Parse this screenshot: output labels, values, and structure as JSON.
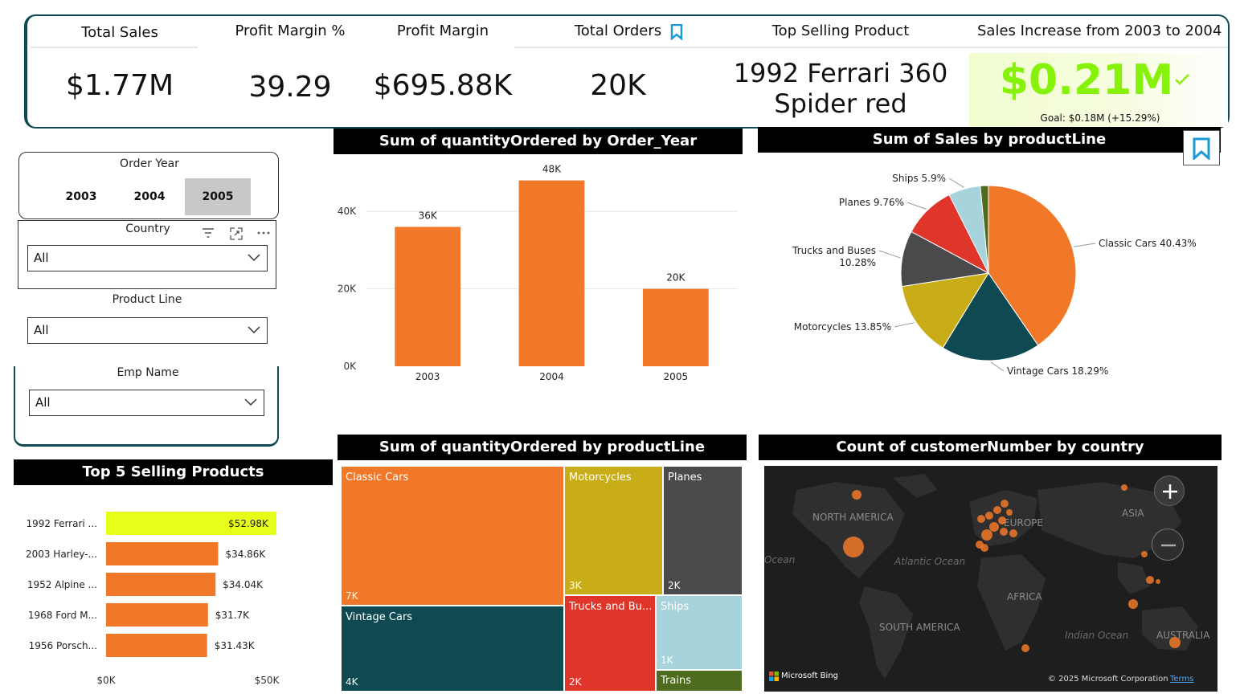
{
  "kpis": {
    "total_sales": {
      "title": "Total Sales",
      "value": "$1.77M"
    },
    "profit_margin_pct": {
      "title": "Profit Margin %",
      "value": "39.29"
    },
    "profit_margin": {
      "title": "Profit Margin",
      "value": "$695.88K"
    },
    "total_orders": {
      "title": "Total Orders",
      "value": "20K"
    },
    "top_product": {
      "title": "Top Selling Product",
      "value_line1": "1992 Ferrari 360",
      "value_line2": "Spider red"
    },
    "sales_increase": {
      "title": "Sales Increase from 2003 to 2004",
      "value": "$0.21M",
      "goal": "Goal: $0.18M (+15.29%)"
    }
  },
  "slicers": {
    "order_year": {
      "label": "Order Year",
      "options": [
        "2003",
        "2004",
        "2005"
      ],
      "selected": "2005"
    },
    "country": {
      "label": "Country",
      "value": "All"
    },
    "product_line": {
      "label": "Product Line",
      "value": "All"
    },
    "emp_name": {
      "label": "Emp Name",
      "value": "All"
    }
  },
  "colors": {
    "orange": "#f07828",
    "dark_teal": "#0f4a52",
    "mustard": "#c9ad18",
    "dark_gray": "#4a4a4c",
    "red": "#e0352a",
    "light_blue": "#a6d3dc",
    "olive": "#4f6b1f",
    "highlight": "#e6ff1a",
    "goal_green": "#86f20a"
  },
  "chart_data": [
    {
      "type": "bar",
      "title": "Sum of quantityOrdered by Order_Year",
      "categories": [
        "2003",
        "2004",
        "2005"
      ],
      "values": [
        36000,
        48000,
        20000
      ],
      "data_labels": [
        "36K",
        "48K",
        "20K"
      ],
      "yticks": [
        "0K",
        "20K",
        "40K"
      ],
      "ylim": [
        0,
        50000
      ]
    },
    {
      "type": "pie",
      "title": "Sum of Sales by productLine",
      "slices": [
        {
          "name": "Classic Cars",
          "pct": 40.43,
          "label": "Classic Cars 40.43%"
        },
        {
          "name": "Vintage Cars",
          "pct": 18.29,
          "label": "Vintage Cars 18.29%"
        },
        {
          "name": "Motorcycles",
          "pct": 13.85,
          "label": "Motorcycles 13.85%"
        },
        {
          "name": "Trucks and Buses",
          "pct": 10.28,
          "label_line1": "Trucks and Buses",
          "label_line2": "10.28%"
        },
        {
          "name": "Planes",
          "pct": 9.76,
          "label": "Planes 9.76%"
        },
        {
          "name": "Ships",
          "pct": 5.9,
          "label": "Ships 5.9%"
        },
        {
          "name": "Trains",
          "pct": 1.49
        }
      ]
    },
    {
      "type": "bar",
      "title": "Top 5 Selling Products",
      "orientation": "horizontal",
      "categories": [
        "1992 Ferrari ...",
        "2003 Harley-...",
        "1952 Alpine ...",
        "1968 Ford M...",
        "1956 Porsch..."
      ],
      "values": [
        52980,
        34860,
        34040,
        31700,
        31430
      ],
      "data_labels": [
        "$52.98K",
        "$34.86K",
        "$34.04K",
        "$31.7K",
        "$31.43K"
      ],
      "xticks": [
        "$0K",
        "$50K"
      ],
      "xlim": [
        0,
        55000
      ]
    },
    {
      "type": "heatmap",
      "subtype": "treemap",
      "title": "Sum of quantityOrdered by productLine",
      "items": [
        {
          "name": "Classic Cars",
          "label": "7K"
        },
        {
          "name": "Vintage Cars",
          "label": "4K"
        },
        {
          "name": "Motorcycles",
          "label": "3K"
        },
        {
          "name": "Planes",
          "label": "2K"
        },
        {
          "name": "Trucks and Bu...",
          "label": "2K"
        },
        {
          "name": "Ships",
          "label": "1K"
        },
        {
          "name": "Trains",
          "label": ""
        }
      ]
    },
    {
      "type": "scatter",
      "subtype": "map",
      "title": "Count of customerNumber by country",
      "labels": {
        "north_america": "NORTH AMERICA",
        "south_america": "SOUTH AMERICA",
        "europe": "EUROPE",
        "asia": "ASIA",
        "africa": "AFRICA",
        "australia": "AUSTRALIA",
        "atlantic": "Atlantic Ocean",
        "indian": "Indian Ocean",
        "ocean_west": "Ocean"
      },
      "attribution": {
        "bing": "Microsoft Bing",
        "copyright": "© 2025 Microsoft Corporation",
        "terms": "Terms"
      }
    }
  ]
}
